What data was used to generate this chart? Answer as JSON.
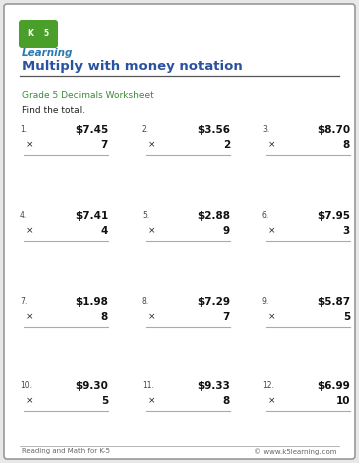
{
  "title": "Multiply with money notation",
  "subtitle": "Grade 5 Decimals Worksheet",
  "instruction": "Find the total.",
  "title_color": "#2a52a0",
  "subtitle_color": "#3a8c3a",
  "footer_left": "Reading and Math for K-5",
  "footer_right": "© www.k5learning.com",
  "problems": [
    {
      "num": "1.",
      "top": "$7.45",
      "mult": "7"
    },
    {
      "num": "2.",
      "top": "$3.56",
      "mult": "2"
    },
    {
      "num": "3.",
      "top": "$8.70",
      "mult": "8"
    },
    {
      "num": "4.",
      "top": "$7.41",
      "mult": "4"
    },
    {
      "num": "5.",
      "top": "$2.88",
      "mult": "9"
    },
    {
      "num": "6.",
      "top": "$7.95",
      "mult": "3"
    },
    {
      "num": "7.",
      "top": "$1.98",
      "mult": "8"
    },
    {
      "num": "8.",
      "top": "$7.29",
      "mult": "7"
    },
    {
      "num": "9.",
      "top": "$5.87",
      "mult": "5"
    },
    {
      "num": "10.",
      "top": "$9.30",
      "mult": "5"
    },
    {
      "num": "11.",
      "top": "$9.33",
      "mult": "8"
    },
    {
      "num": "12.",
      "top": "$6.99",
      "mult": "10"
    }
  ],
  "bg_color": "#e8e8e8",
  "border_color": "#999999",
  "line_color": "#aaaaaa",
  "body_bg": "#ffffff",
  "logo_green": "#4a9e2a",
  "logo_blue": "#2a7ab0"
}
